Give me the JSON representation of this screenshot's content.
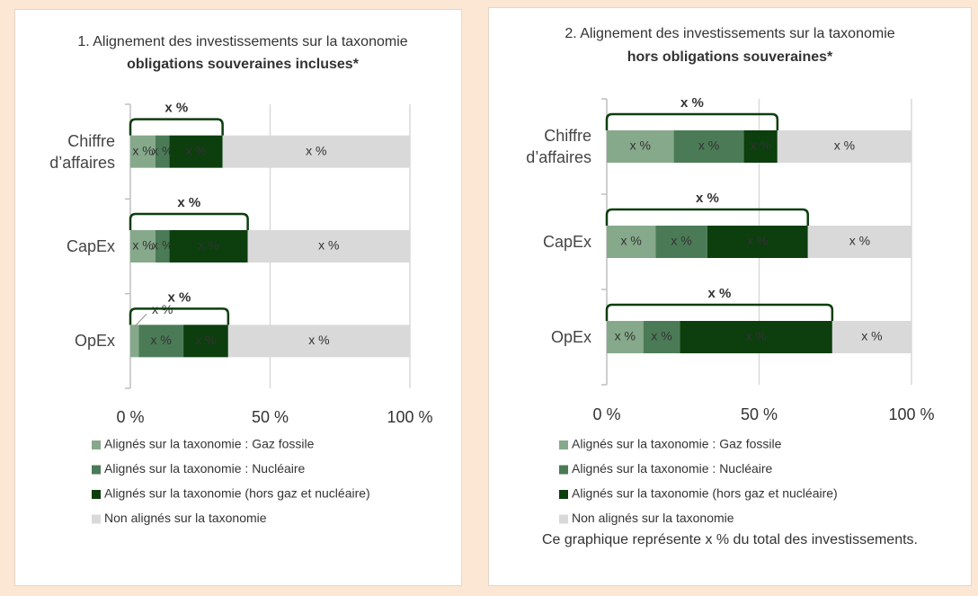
{
  "chart_data": [
    {
      "type": "stacked-barh",
      "title": "1. Alignement des investissements sur la taxonomie",
      "subtitle": "obligations souveraines incluses*",
      "categories": [
        "Chiffre d’affaires",
        "CapEx",
        "OpEx"
      ],
      "series": [
        {
          "name": "Alignés sur la taxonomie : Gaz fossile",
          "color": "#86a98b",
          "values": [
            9,
            9,
            3
          ],
          "value_labels": [
            "x %",
            "x %",
            "x %"
          ]
        },
        {
          "name": "Alignés sur la taxonomie : Nucléaire",
          "color": "#4b7b56",
          "values": [
            5,
            5,
            16
          ],
          "value_labels": [
            "x %",
            "x %",
            "x %"
          ]
        },
        {
          "name": "Alignés sur la taxonomie (hors gaz et nucléaire)",
          "color": "#0c3e0e",
          "values": [
            19,
            28,
            16
          ],
          "value_labels": [
            "x %",
            "x %",
            "x %"
          ]
        },
        {
          "name": "Non alignés sur la taxonomie",
          "color": "#d9d9d9",
          "values": [
            67,
            58,
            65
          ],
          "value_labels": [
            "x %",
            "x %",
            "x %"
          ]
        }
      ],
      "total_labels": [
        "x %",
        "x %",
        "x %"
      ],
      "xlim": [
        0,
        100
      ],
      "xticks": [
        {
          "value": 0,
          "label": "0 %"
        },
        {
          "value": 50,
          "label": "50 %"
        },
        {
          "value": 100,
          "label": "100 %"
        }
      ],
      "grid": true
    },
    {
      "type": "stacked-barh",
      "title": "2. Alignement des investissements sur la taxonomie",
      "subtitle": "hors obligations souveraines*",
      "categories": [
        "Chiffre d’affaires",
        "CapEx",
        "OpEx"
      ],
      "series": [
        {
          "name": "Alignés sur la taxonomie : Gaz fossile",
          "color": "#86a98b",
          "values": [
            22,
            16,
            12
          ],
          "value_labels": [
            "x %",
            "x %",
            "x %"
          ]
        },
        {
          "name": "Alignés sur la taxonomie : Nucléaire",
          "color": "#4b7b56",
          "values": [
            23,
            17,
            12
          ],
          "value_labels": [
            "x %",
            "x %",
            "x %"
          ]
        },
        {
          "name": "Alignés sur la taxonomie (hors gaz et nucléaire)",
          "color": "#0c3e0e",
          "values": [
            11,
            33,
            50
          ],
          "value_labels": [
            "x %",
            "x %",
            "x %"
          ]
        },
        {
          "name": "Non alignés sur la taxonomie",
          "color": "#d9d9d9",
          "values": [
            44,
            34,
            26
          ],
          "value_labels": [
            "x %",
            "x %",
            "x %"
          ]
        }
      ],
      "total_labels": [
        "x %",
        "x %",
        "x %"
      ],
      "xlim": [
        0,
        100
      ],
      "xticks": [
        {
          "value": 0,
          "label": "0 %"
        },
        {
          "value": 50,
          "label": "50 %"
        },
        {
          "value": 100,
          "label": "100 %"
        }
      ],
      "grid": true,
      "note": "Ce graphique représente x % du total des investissements."
    }
  ]
}
